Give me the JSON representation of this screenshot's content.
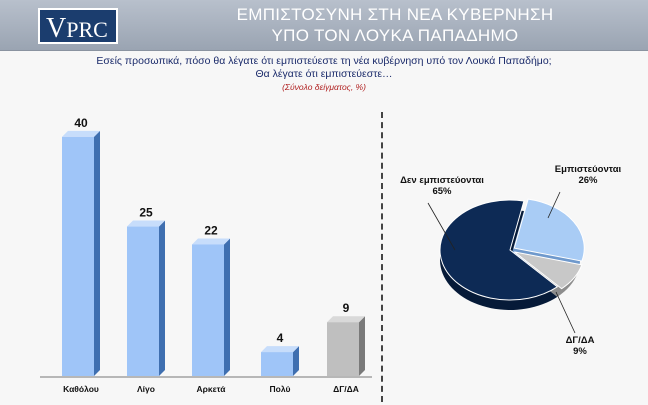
{
  "header": {
    "logo_text": "PRC",
    "logo_initial": "V",
    "title_line1": "ΕΜΠΙΣΤΟΣΥΝΗ ΣΤΗ ΝΕΑ ΚΥΒΕΡΝΗΣΗ",
    "title_line2": "ΥΠΟ ΤΟΝ ΛΟΥΚΑ ΠΑΠΑΔΗΜΟ"
  },
  "question": {
    "line1": "Εσείς προσωπικά, πόσο θα λέγατε ότι εμπιστεύεστε τη νέα κυβέρνηση υπό τον Λουκά Παπαδήμο;",
    "line2": "Θα λέγατε ότι εμπιστεύεστε…",
    "sample": "(Σύνολο δείγματος, %)"
  },
  "colors": {
    "bar_blue": "#9fc5f8",
    "bar_gray": "#bfbfbf",
    "pie_dark": "#0d2a55",
    "pie_light": "#a9ccf5",
    "pie_gray": "#c8c8c8"
  },
  "chart_data": [
    {
      "type": "bar",
      "categories": [
        "Καθόλου",
        "Λίγο",
        "Αρκετά",
        "Πολύ",
        "ΔΓ/ΔΑ"
      ],
      "values": [
        40,
        25,
        22,
        4,
        9
      ],
      "ylim": [
        0,
        45
      ]
    },
    {
      "type": "pie",
      "labels": [
        "Δεν εμπιστεύονται",
        "Εμπιστεύονται",
        "ΔΓ/ΔΑ"
      ],
      "values": [
        65,
        26,
        9
      ],
      "value_labels": [
        "65%",
        "26%",
        "9%"
      ]
    }
  ]
}
